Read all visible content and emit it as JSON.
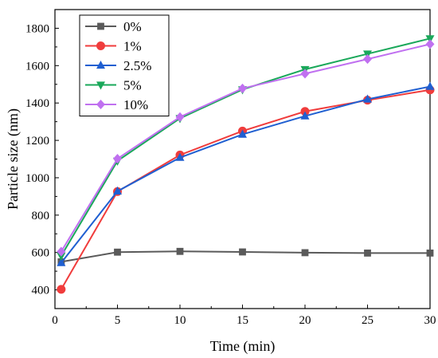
{
  "chart_data": {
    "type": "line",
    "title": "",
    "xlabel": "Time (min)",
    "ylabel": "Particle size (nm)",
    "xlim": [
      0,
      30
    ],
    "ylim": [
      300,
      1900
    ],
    "xticks": [
      0,
      5,
      10,
      15,
      20,
      25,
      30
    ],
    "yticks": [
      400,
      600,
      800,
      1000,
      1200,
      1400,
      1600,
      1800
    ],
    "grid": false,
    "legend_position": "top-left",
    "series": [
      {
        "name": "0%",
        "color": "#5a5a5a",
        "marker": "square",
        "x": [
          0.5,
          5,
          10,
          15,
          20,
          25,
          30
        ],
        "y": [
          550,
          602,
          606,
          603,
          599,
          597,
          597
        ]
      },
      {
        "name": "1%",
        "color": "#f03c3c",
        "marker": "circle",
        "x": [
          0.5,
          5,
          10,
          15,
          20,
          25,
          30
        ],
        "y": [
          403,
          926,
          1122,
          1250,
          1355,
          1415,
          1470
        ]
      },
      {
        "name": "2.5%",
        "color": "#1f5fd1",
        "marker": "triangle-up",
        "x": [
          0.5,
          5,
          10,
          15,
          20,
          25,
          30
        ],
        "y": [
          545,
          928,
          1108,
          1232,
          1330,
          1420,
          1488
        ]
      },
      {
        "name": "5%",
        "color": "#1aa85a",
        "marker": "triangle-down",
        "x": [
          0.5,
          5,
          10,
          15,
          20,
          25,
          30
        ],
        "y": [
          582,
          1090,
          1318,
          1472,
          1580,
          1663,
          1745
        ]
      },
      {
        "name": "10%",
        "color": "#c070f0",
        "marker": "diamond",
        "x": [
          0.5,
          5,
          10,
          15,
          20,
          25,
          30
        ],
        "y": [
          605,
          1102,
          1325,
          1478,
          1557,
          1635,
          1715
        ]
      }
    ]
  }
}
